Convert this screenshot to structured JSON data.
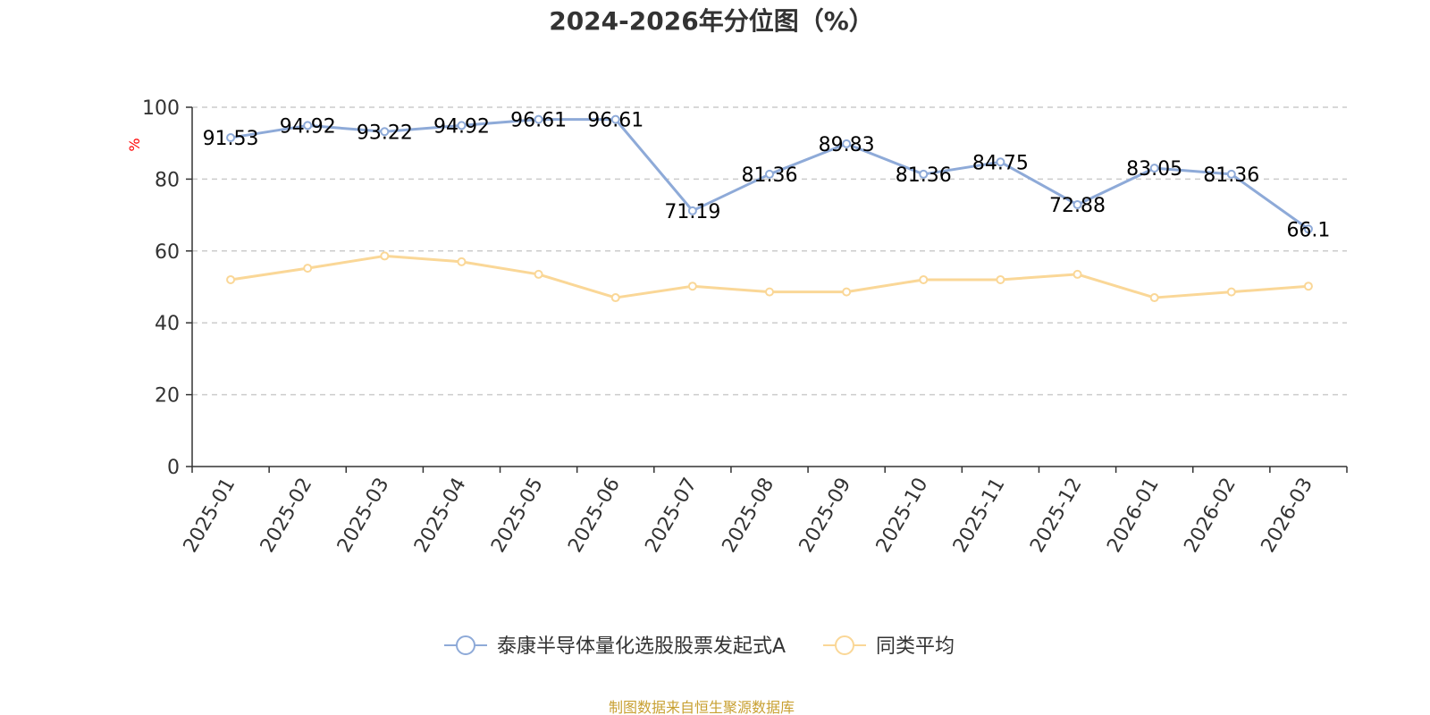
{
  "chart_data": {
    "type": "line",
    "title": "2024-2026年分位图（%）",
    "ylabel": "%",
    "xlabel": "",
    "ylim": [
      0,
      100
    ],
    "yticks": [
      0,
      20,
      40,
      60,
      80,
      100
    ],
    "grid": true,
    "legend_position": "bottom-center",
    "categories": [
      "2025-01",
      "2025-02",
      "2025-03",
      "2025-04",
      "2025-05",
      "2025-06",
      "2025-07",
      "2025-08",
      "2025-09",
      "2025-10",
      "2025-11",
      "2025-12",
      "2026-01",
      "2026-02",
      "2026-03"
    ],
    "series": [
      {
        "name": "泰康半导体量化选股股票发起式A",
        "color": "#8eaad8",
        "show_labels": true,
        "labels": [
          "91.53",
          "94.92",
          "93.22",
          "94.92",
          "96.61",
          "96.61",
          "71.19",
          "81.36",
          "89.83",
          "81.36",
          "84.75",
          "72.88",
          "83.05",
          "81.36",
          "66.1"
        ],
        "values": [
          91.53,
          94.92,
          93.22,
          94.92,
          96.61,
          96.61,
          71.19,
          81.36,
          89.83,
          81.36,
          84.75,
          72.88,
          83.05,
          81.36,
          66.1
        ]
      },
      {
        "name": "同类平均",
        "color": "#fad797",
        "show_labels": false,
        "values": [
          52,
          55.2,
          58.6,
          57,
          53.5,
          47,
          50.2,
          48.6,
          48.6,
          52,
          52,
          53.5,
          47,
          48.6,
          50.2
        ]
      }
    ],
    "source": "制图数据来自恒生聚源数据库",
    "source_color": "#c8a032",
    "ylabel_color": "#ff0000"
  }
}
